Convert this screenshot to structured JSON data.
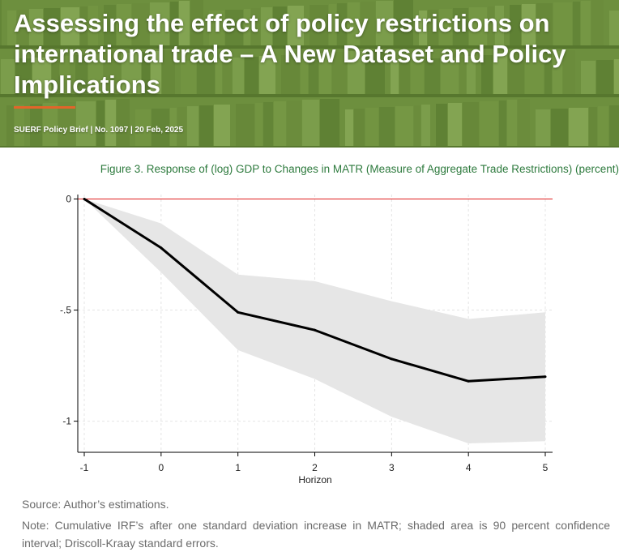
{
  "banner": {
    "title": "Assessing the effect of policy restrictions on international trade – A New Dataset and Policy Implications",
    "meta": "SUERF Policy Brief | No. 1097 | 20 Feb, 2025"
  },
  "figure": {
    "title": "Figure 3. Response of (log) GDP to Changes in MATR (Measure of Aggregate Trade Restrictions) (percent)",
    "source": "Source: Author’s estimations.",
    "note": "Note: Cumulative IRF’s after one standard deviation increase in MATR; shaded area is 90 percent confidence interval; Driscoll-Kraay standard errors."
  },
  "colors": {
    "banner_green": "#6d8f3e",
    "accent_orange": "#e2652a",
    "title_green": "#2d7a3d",
    "zero_line": "#e02020",
    "ci_band": "#e6e6e6",
    "irf_line": "#000000"
  },
  "chart_data": {
    "type": "line",
    "title": "",
    "xlabel": "Horizon",
    "ylabel": "",
    "x": [
      -1,
      0,
      1,
      2,
      3,
      4,
      5
    ],
    "xticks": [
      "-1",
      "0",
      "1",
      "2",
      "3",
      "4",
      "5"
    ],
    "yticks": [
      "0",
      "-.5",
      "-1"
    ],
    "ytick_values": [
      0,
      -0.5,
      -1
    ],
    "xlim": [
      -1,
      5
    ],
    "ylim": [
      -1.14,
      0.02
    ],
    "grid": true,
    "reference_line": {
      "y": 0
    },
    "series": [
      {
        "values": [
          0,
          -0.22,
          -0.51,
          -0.59,
          -0.72,
          -0.82,
          -0.8
        ]
      }
    ],
    "band": {
      "lower": [
        0,
        -0.33,
        -0.68,
        -0.81,
        -0.98,
        -1.1,
        -1.09
      ],
      "upper": [
        0,
        -0.11,
        -0.34,
        -0.37,
        -0.46,
        -0.54,
        -0.51
      ]
    }
  }
}
